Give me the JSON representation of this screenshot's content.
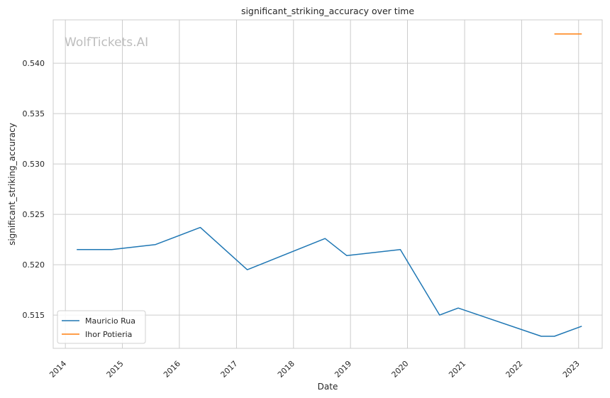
{
  "chart_data": {
    "type": "line",
    "title": "significant_striking_accuracy over time",
    "xlabel": "Date",
    "ylabel": "significant_striking_accuracy",
    "watermark": "WolfTickets.AI",
    "x_ticks": [
      "2014",
      "2015",
      "2016",
      "2017",
      "2018",
      "2019",
      "2020",
      "2021",
      "2022",
      "2023"
    ],
    "y_ticks": [
      "0.515",
      "0.520",
      "0.525",
      "0.530",
      "0.535",
      "0.540"
    ],
    "xlim": [
      "2013-10-15",
      "2023-06-01"
    ],
    "ylim": [
      0.5117,
      0.5443
    ],
    "grid": true,
    "legend_position": "lower-left",
    "series": [
      {
        "name": "Mauricio Rua",
        "color": "#1f77b4",
        "points": [
          [
            "2014-03-15",
            0.5215
          ],
          [
            "2014-10-25",
            0.5215
          ],
          [
            "2015-08-01",
            0.522
          ],
          [
            "2016-05-14",
            0.5237
          ],
          [
            "2017-03-11",
            0.5195
          ],
          [
            "2018-07-22",
            0.5226
          ],
          [
            "2018-12-08",
            0.5209
          ],
          [
            "2019-11-16",
            0.5215
          ],
          [
            "2020-07-25",
            0.515
          ],
          [
            "2020-11-21",
            0.5157
          ],
          [
            "2022-05-07",
            0.5129
          ],
          [
            "2022-07-30",
            0.5129
          ],
          [
            "2023-01-21",
            0.5139
          ]
        ]
      },
      {
        "name": "Ihor Potieria",
        "color": "#ff7f0e",
        "points": [
          [
            "2022-07-30",
            0.5429
          ],
          [
            "2023-01-21",
            0.5429
          ]
        ]
      }
    ]
  }
}
